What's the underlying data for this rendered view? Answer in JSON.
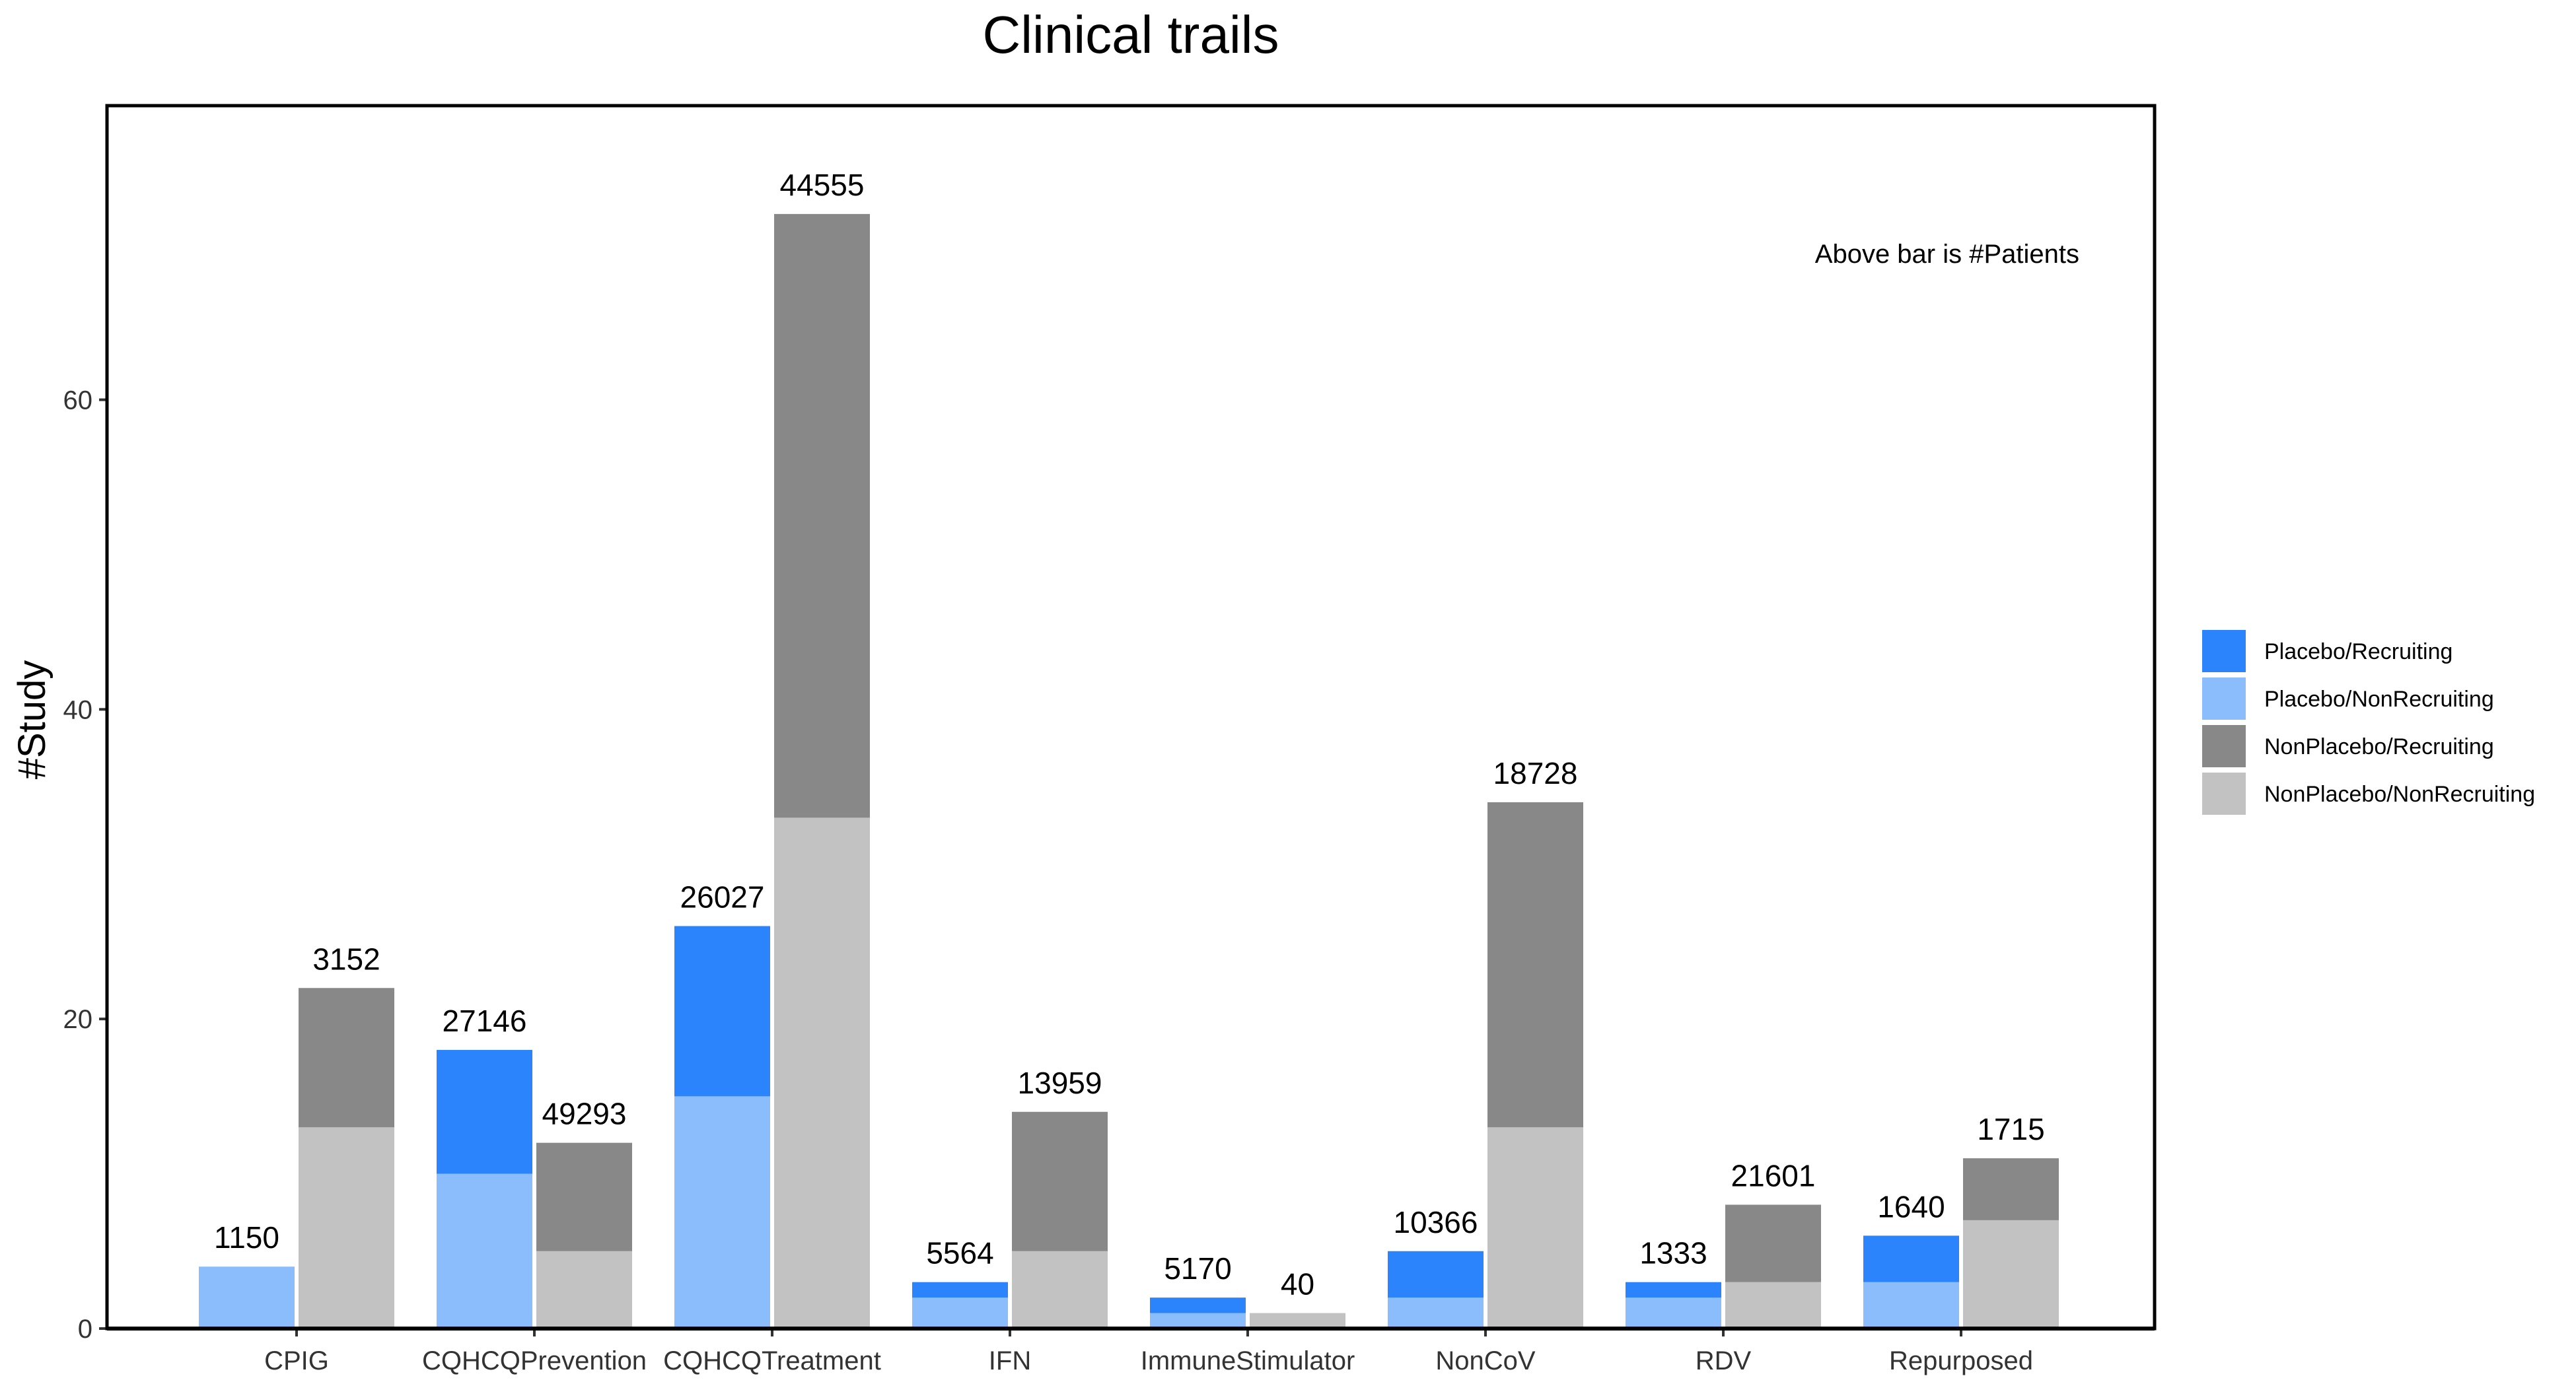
{
  "chart_data": {
    "type": "bar",
    "stacked": true,
    "grouped": true,
    "title": "Clinical trails",
    "xlabel": "",
    "ylabel": "#Study",
    "ylim": [
      0,
      79
    ],
    "yticks": [
      0,
      20,
      40,
      60
    ],
    "grid": false,
    "legend_position": "right",
    "annotation": "Above bar is #Patients",
    "colors": {
      "Placebo/Recruiting": "#2b84fb",
      "Placebo/NonRecruiting": "#8bbcfc",
      "NonPlacebo/Recruiting": "#888888",
      "NonPlacebo/NonRecruiting": "#c2c2c2"
    },
    "legend": [
      "Placebo/Recruiting",
      "Placebo/NonRecruiting",
      "NonPlacebo/Recruiting",
      "NonPlacebo/NonRecruiting"
    ],
    "categories": [
      "CPIG",
      "CQHCQPrevention",
      "CQHCQTreatment",
      "IFN",
      "ImmuneStimulator",
      "NonCoV",
      "RDV",
      "Repurposed"
    ],
    "groups": [
      {
        "name": "Placebo",
        "stack": [
          "Placebo/NonRecruiting",
          "Placebo/Recruiting"
        ]
      },
      {
        "name": "NonPlacebo",
        "stack": [
          "NonPlacebo/NonRecruiting",
          "NonPlacebo/Recruiting"
        ]
      }
    ],
    "series": [
      {
        "name": "Placebo/NonRecruiting",
        "group": "Placebo",
        "values": [
          4,
          10,
          15,
          2,
          1,
          2,
          2,
          3
        ]
      },
      {
        "name": "Placebo/Recruiting",
        "group": "Placebo",
        "values": [
          0,
          8,
          11,
          1,
          1,
          3,
          1,
          3
        ]
      },
      {
        "name": "NonPlacebo/NonRecruiting",
        "group": "NonPlacebo",
        "values": [
          13,
          5,
          33,
          5,
          1,
          13,
          3,
          7
        ]
      },
      {
        "name": "NonPlacebo/Recruiting",
        "group": "NonPlacebo",
        "values": [
          9,
          7,
          39,
          9,
          0,
          21,
          5,
          4
        ]
      }
    ],
    "patients": {
      "Placebo": [
        1150,
        27146,
        26027,
        5564,
        5170,
        10366,
        1333,
        1640
      ],
      "NonPlacebo": [
        3152,
        49293,
        44555,
        13959,
        40,
        18728,
        21601,
        1715
      ]
    }
  }
}
